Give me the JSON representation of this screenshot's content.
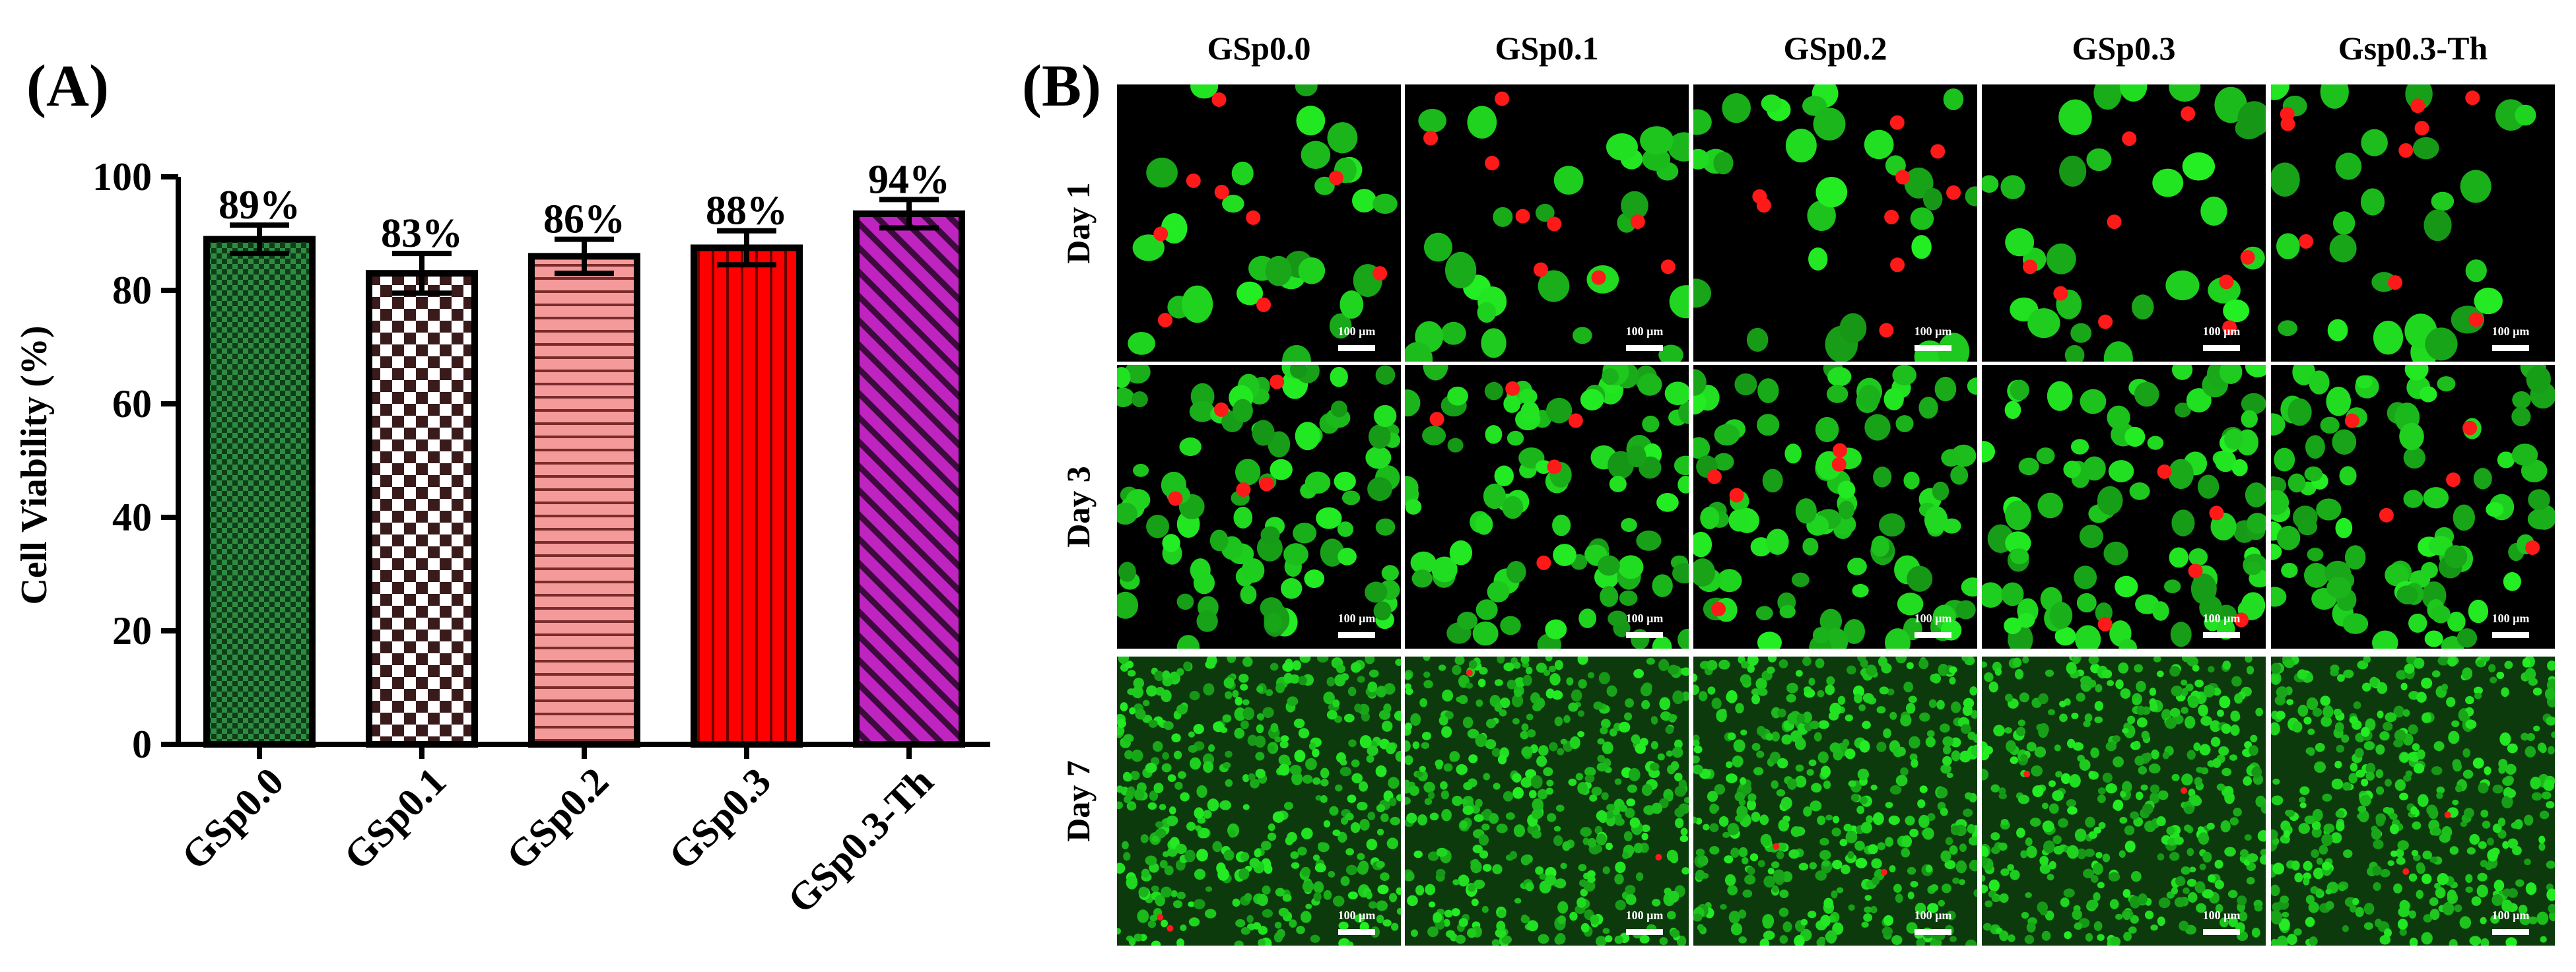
{
  "panels": {
    "a_label": "(A)",
    "b_label": "(B)"
  },
  "chart_data": {
    "type": "bar",
    "title": "",
    "xlabel": "",
    "ylabel": "Cell Viability (%)",
    "ylim": [
      0,
      100
    ],
    "yticks": [
      0,
      20,
      40,
      60,
      80,
      100
    ],
    "grid": false,
    "categories": [
      "GSp0.0",
      "GSp0.1",
      "GSp0.2",
      "GSp0.3",
      "GSp0.3-Th"
    ],
    "values": [
      89,
      83,
      86,
      87.5,
      93.5
    ],
    "errors": [
      2.5,
      3.5,
      3,
      3,
      2.5
    ],
    "data_labels": [
      "89%",
      "83%",
      "86%",
      "88%",
      "94%"
    ],
    "fills": [
      {
        "pattern": "checker-small",
        "color": "#1f6b2f"
      },
      {
        "pattern": "checker-large",
        "color": "#e8c9c9"
      },
      {
        "pattern": "horizontal-lines",
        "color": "#f08585"
      },
      {
        "pattern": "vertical-lines",
        "color": "#ff0000"
      },
      {
        "pattern": "diagonal-lines",
        "color": "#b51fb5"
      }
    ]
  },
  "micrographs": {
    "columns": [
      "GSp0.0",
      "GSp0.1",
      "GSp0.2",
      "GSp0.3",
      "Gsp0.3-Th"
    ],
    "rows": [
      "Day 1",
      "Day 3",
      "Day 7"
    ],
    "scale_bar_label": "100 µm",
    "live_color": "#19d419",
    "dead_color": "#ff1a1a"
  }
}
